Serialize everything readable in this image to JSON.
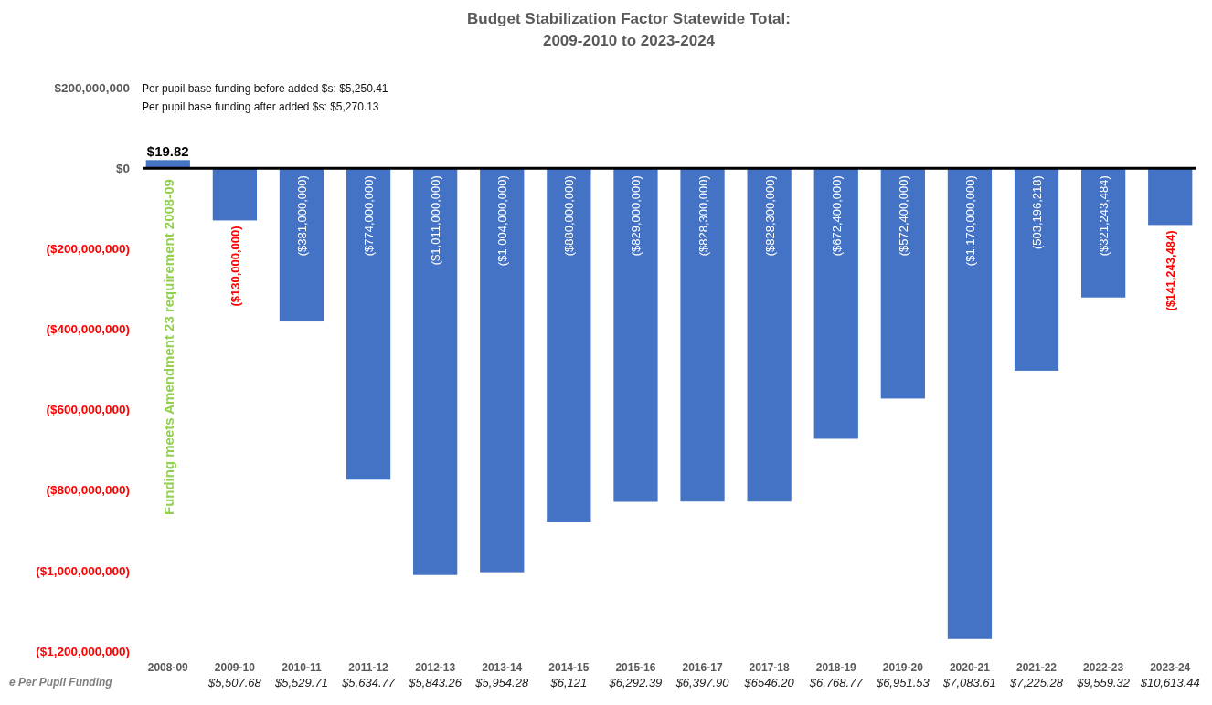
{
  "chart_data": {
    "type": "bar",
    "title": "Budget Stabilization Factor Statewide Total:\n2009-2010 to 2023-2024",
    "categories": [
      "2008-09",
      "2009-10\n$5,507.68",
      "2010-11\n$5,529.71",
      "2011-12\n$5,634.77",
      "2012-13\n$5,843.26",
      "2013-14\n$5,954.28",
      "2014-15\n$6,121",
      "2015-16\n$6,292.39",
      "2016-17\n$6,397.90",
      "2017-18\n$6546.20",
      "2018-19\n$6,768.77",
      "2019-20\n$6,951.53",
      "2020-21\n$7,083.61",
      "2021-22\n$7,225.28",
      "2022-23\n$9,559.32",
      "2023-24\n$10,613.44"
    ],
    "values": [
      20000000,
      -130000000,
      -381000000,
      -774000000,
      -1011000000,
      -1004000000,
      -880000000,
      -829000000,
      -828300000,
      -828300000,
      -672400000,
      -572400000,
      -1170000000,
      -503196218,
      -321243484,
      -141243484
    ],
    "value_labels": [
      null,
      "($130,000,000)",
      "($381,000,000)",
      "($774,000,000)",
      "($1,011,000,000)",
      "($1,004,000,000)",
      "($880,000,000)",
      "($829,000,000)",
      "($828,300,000)",
      "($828,300,000)",
      "($672,400,000)",
      "($572,400,000)",
      "($1,170,000,000)",
      "(503,196,218)",
      "($321,243,484)",
      "($141,243,484)"
    ],
    "color": "#4472c4",
    "ylim": [
      -1200000000,
      200000000
    ],
    "yticks": [
      {
        "value": 200000000,
        "label": "$200,000,000"
      },
      {
        "value": 0,
        "label": "$0"
      },
      {
        "value": -200000000,
        "label": "($200,000,000)"
      },
      {
        "value": -400000000,
        "label": "($400,000,000)"
      },
      {
        "value": -600000000,
        "label": "($600,000,000)"
      },
      {
        "value": -800000000,
        "label": "($800,000,000)"
      },
      {
        "value": -1000000000,
        "label": "($1,000,000,000)"
      },
      {
        "value": -1200000000,
        "label": "($1,200,000,000)"
      }
    ],
    "annotations": [
      {
        "text": "$19.82",
        "x": "2008-09",
        "y": 20000000
      },
      "Per pupil base funding before added $s: $5,250.41",
      "Per pupil base funding after added $s:    $5,270.13",
      "Funding meets Amendment 23 requirement 2008-09",
      "e Per Pupil Funding"
    ]
  }
}
